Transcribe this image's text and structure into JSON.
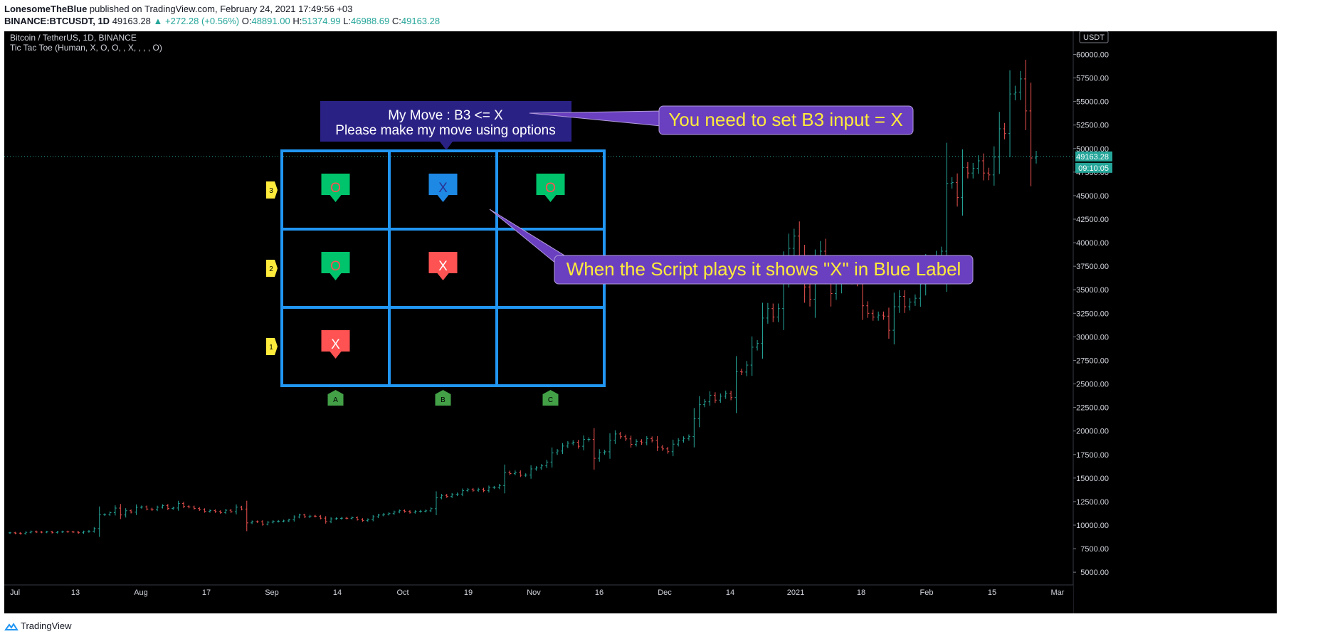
{
  "header": {
    "author": "LonesomeTheBlue",
    "published_text": " published on TradingView.com, February 24, 2021 17:49:56 +03",
    "symbol": "BINANCE:BTCUSDT, 1D",
    "last": "49163.28",
    "change": "▲ +272.28 (+0.56%)",
    "o_label": "O:",
    "o": "48891.00",
    "h_label": "H:",
    "h": "51374.99",
    "l_label": "L:",
    "l": "46988.69",
    "c_label": "C:",
    "c": "49163.28"
  },
  "legend": {
    "title": "Bitcoin / TetherUS, 1D, BINANCE",
    "indicator": "Tic Tac Toe (Human, X, O, O, , X, , , , O)"
  },
  "colors": {
    "up": "#26a69a",
    "down": "#ef5350",
    "grid": "#2196f3",
    "green_label": "#00c46b",
    "red_label": "#ff5252",
    "blue_label": "#1e88e5",
    "callout": "#6a3fc0",
    "callout_text": "#ffeb3b",
    "move_box": "#2a2185",
    "price_tag": "#26a6459"
  },
  "chart_data": {
    "type": "candlestick",
    "y_axis": {
      "currency": "USDT",
      "ticks": [
        "60000.00",
        "57500.00",
        "55000.00",
        "52500.00",
        "50000.00",
        "47500.00",
        "45000.00",
        "42500.00",
        "40000.00",
        "37500.00",
        "35000.00",
        "32500.00",
        "30000.00",
        "27500.00",
        "25000.00",
        "22500.00",
        "20000.00",
        "17500.00",
        "15000.00",
        "12500.00",
        "10000.00",
        "7500.00",
        "5000.00"
      ],
      "range": [
        3800,
        61700
      ]
    },
    "x_axis": {
      "ticks": [
        "Jul",
        "13",
        "Aug",
        "17",
        "Sep",
        "14",
        "Oct",
        "19",
        "Nov",
        "16",
        "Dec",
        "14",
        "2021",
        "18",
        "Feb",
        "15",
        "Mar"
      ]
    },
    "last_price": "49163.28",
    "countdown": "09:10:05",
    "closes": [
      9180,
      9150,
      9100,
      9230,
      9310,
      9260,
      9250,
      9290,
      9220,
      9270,
      9300,
      9290,
      9260,
      9190,
      9300,
      9360,
      9630,
      11100,
      11120,
      11320,
      11810,
      11080,
      11530,
      11380,
      11890,
      11940,
      11710,
      11650,
      11910,
      12070,
      11770,
      11820,
      12300,
      11990,
      11930,
      11780,
      11650,
      11460,
      11540,
      11440,
      11330,
      11580,
      11430,
      11910,
      11710,
      10240,
      10370,
      10360,
      10100,
      10310,
      10400,
      10420,
      10450,
      10560,
      10860,
      11080,
      10890,
      10960,
      10950,
      10740,
      10380,
      10670,
      10710,
      10740,
      10730,
      10800,
      10610,
      10480,
      10590,
      10890,
      11070,
      11160,
      11230,
      11400,
      11530,
      11460,
      11360,
      11460,
      11480,
      11520,
      11750,
      12900,
      13160,
      13050,
      13250,
      13300,
      13670,
      13780,
      13700,
      13800,
      13660,
      14000,
      14000,
      14210,
      15600,
      15480,
      15620,
      15300,
      15320,
      15970,
      16070,
      16300,
      16700,
      17670,
      17870,
      18400,
      18700,
      18800,
      18380,
      19100,
      19100,
      17100,
      17700,
      17790,
      19020,
      19680,
      19390,
      19160,
      18580,
      18900,
      18750,
      19190,
      19020,
      18300,
      18100,
      17800,
      18600,
      19000,
      19200,
      19400,
      21300,
      22800,
      23100,
      23800,
      23280,
      23700,
      24000,
      23550,
      26300,
      26260,
      27000,
      28900,
      29300,
      32000,
      33000,
      32100,
      33000,
      36800,
      39400,
      40700,
      38100,
      35300,
      34000,
      37300,
      39100,
      36900,
      34600,
      35700,
      37500,
      36500,
      36000,
      35800,
      33300,
      32500,
      32100,
      32300,
      32200,
      30700,
      33200,
      34300,
      33200,
      33700,
      34100,
      35600,
      37600,
      36900,
      38300,
      39100,
      46300,
      46400,
      44800,
      48000,
      47400,
      47900,
      48700,
      47400,
      47200,
      49100,
      52100,
      51600,
      55800,
      56000,
      57400,
      54000,
      49000,
      49163
    ]
  },
  "board": {
    "row_labels": [
      "3",
      "2",
      "1"
    ],
    "col_labels": [
      "A",
      "B",
      "C"
    ],
    "cells": [
      {
        "row": 0,
        "col": 0,
        "text": "O",
        "style": "green"
      },
      {
        "row": 0,
        "col": 1,
        "text": "X",
        "style": "blue"
      },
      {
        "row": 0,
        "col": 2,
        "text": "O",
        "style": "green"
      },
      {
        "row": 1,
        "col": 0,
        "text": "O",
        "style": "green"
      },
      {
        "row": 1,
        "col": 1,
        "text": "X",
        "style": "red"
      },
      {
        "row": 2,
        "col": 0,
        "text": "X",
        "style": "red"
      }
    ],
    "move_line1": "My Move : B3 <= X",
    "move_line2": "Please make my move using options"
  },
  "callouts": {
    "set_input": "You need to set B3 input = X",
    "script_plays": "When the Script plays it shows \"X\" in Blue Label"
  },
  "footer": {
    "brand": "TradingView"
  }
}
